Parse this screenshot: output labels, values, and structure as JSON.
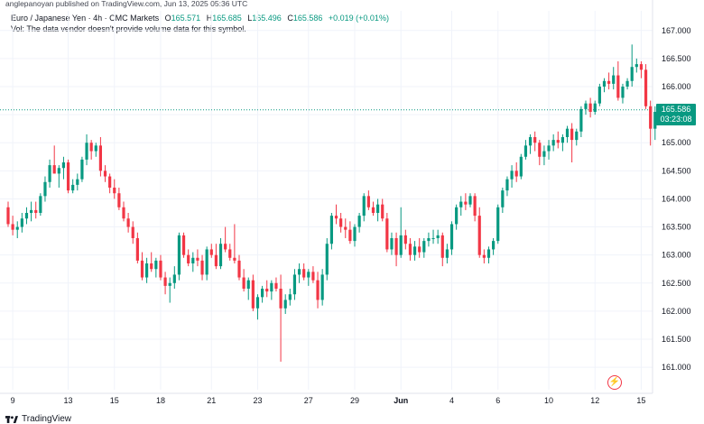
{
  "caption": "anglepanoyan published on TradingView.com, Jun 13, 2025 05:36 UTC",
  "legend": {
    "symbol": "Euro / Japanese Yen · 4h · CMC Markets",
    "open_label": "O",
    "open": "165.571",
    "high_label": "H",
    "high": "165.685",
    "low_label": "L",
    "low": "165.496",
    "close_label": "C",
    "close": "165.586",
    "change": "+0.019 (+0.01%)"
  },
  "volume_note": "Vol: The data vendor doesn't provide volume data for this symbol.",
  "price_tag": {
    "price": "165.586",
    "countdown": "03:23:08"
  },
  "footer": {
    "brand": "TradingView"
  },
  "icons": {
    "logo": "tradingview-logo-icon",
    "bolt": "lightning-bolt-icon"
  },
  "colors": {
    "up": "#089981",
    "down": "#f23645",
    "grid": "#f0f3fa",
    "axis_text": "#131722"
  },
  "chart_data": {
    "type": "candlestick",
    "interval": "4h",
    "ylim": [
      160.6,
      167.35
    ],
    "y_ticks": [
      "167.000",
      "166.500",
      "166.000",
      "165.500",
      "165.000",
      "164.500",
      "164.000",
      "163.500",
      "163.000",
      "162.500",
      "162.000",
      "161.500",
      "161.000"
    ],
    "y_tick_values": [
      167.0,
      166.5,
      166.0,
      165.5,
      165.0,
      164.5,
      164.0,
      163.5,
      163.0,
      162.5,
      162.0,
      161.5,
      161.0
    ],
    "x_ticks": [
      "9",
      "13",
      "15",
      "18",
      "21",
      "23",
      "27",
      "29",
      "Jun",
      "4",
      "6",
      "10",
      "12",
      "15"
    ],
    "x_tick_index": [
      1,
      13,
      23,
      33,
      44,
      54,
      65,
      75,
      85,
      96,
      106,
      117,
      127,
      137
    ],
    "last_price": 165.586,
    "series": [
      {
        "o": 163.85,
        "h": 163.95,
        "l": 163.5,
        "c": 163.55
      },
      {
        "o": 163.55,
        "h": 163.7,
        "l": 163.35,
        "c": 163.45
      },
      {
        "o": 163.45,
        "h": 163.6,
        "l": 163.3,
        "c": 163.5
      },
      {
        "o": 163.5,
        "h": 163.75,
        "l": 163.4,
        "c": 163.65
      },
      {
        "o": 163.65,
        "h": 163.85,
        "l": 163.55,
        "c": 163.75
      },
      {
        "o": 163.75,
        "h": 163.95,
        "l": 163.6,
        "c": 163.8
      },
      {
        "o": 163.8,
        "h": 163.95,
        "l": 163.65,
        "c": 163.75
      },
      {
        "o": 163.75,
        "h": 164.1,
        "l": 163.7,
        "c": 164.05
      },
      {
        "o": 164.05,
        "h": 164.4,
        "l": 163.95,
        "c": 164.3
      },
      {
        "o": 164.3,
        "h": 164.7,
        "l": 164.2,
        "c": 164.6
      },
      {
        "o": 164.6,
        "h": 164.95,
        "l": 164.45,
        "c": 164.45
      },
      {
        "o": 164.45,
        "h": 164.6,
        "l": 164.2,
        "c": 164.55
      },
      {
        "o": 164.55,
        "h": 164.75,
        "l": 164.35,
        "c": 164.65
      },
      {
        "o": 164.65,
        "h": 164.7,
        "l": 164.1,
        "c": 164.15
      },
      {
        "o": 164.15,
        "h": 164.35,
        "l": 164.1,
        "c": 164.25
      },
      {
        "o": 164.25,
        "h": 164.45,
        "l": 164.15,
        "c": 164.35
      },
      {
        "o": 164.35,
        "h": 164.75,
        "l": 164.3,
        "c": 164.7
      },
      {
        "o": 164.7,
        "h": 165.15,
        "l": 164.6,
        "c": 165.0
      },
      {
        "o": 165.0,
        "h": 165.05,
        "l": 164.7,
        "c": 164.85
      },
      {
        "o": 164.85,
        "h": 165.0,
        "l": 164.75,
        "c": 164.95
      },
      {
        "o": 164.95,
        "h": 165.1,
        "l": 164.4,
        "c": 164.5
      },
      {
        "o": 164.5,
        "h": 164.6,
        "l": 164.3,
        "c": 164.4
      },
      {
        "o": 164.4,
        "h": 164.45,
        "l": 164.1,
        "c": 164.2
      },
      {
        "o": 164.2,
        "h": 164.35,
        "l": 164.0,
        "c": 164.1
      },
      {
        "o": 164.1,
        "h": 164.2,
        "l": 163.8,
        "c": 163.85
      },
      {
        "o": 163.85,
        "h": 163.95,
        "l": 163.6,
        "c": 163.65
      },
      {
        "o": 163.65,
        "h": 163.75,
        "l": 163.4,
        "c": 163.5
      },
      {
        "o": 163.5,
        "h": 163.6,
        "l": 163.2,
        "c": 163.3
      },
      {
        "o": 163.3,
        "h": 163.4,
        "l": 162.85,
        "c": 162.9
      },
      {
        "o": 162.9,
        "h": 163.05,
        "l": 162.55,
        "c": 162.6
      },
      {
        "o": 162.6,
        "h": 162.95,
        "l": 162.5,
        "c": 162.85
      },
      {
        "o": 162.85,
        "h": 163.05,
        "l": 162.7,
        "c": 162.75
      },
      {
        "o": 162.75,
        "h": 162.95,
        "l": 162.6,
        "c": 162.9
      },
      {
        "o": 162.9,
        "h": 163.0,
        "l": 162.55,
        "c": 162.6
      },
      {
        "o": 162.6,
        "h": 162.7,
        "l": 162.3,
        "c": 162.45
      },
      {
        "o": 162.45,
        "h": 162.6,
        "l": 162.15,
        "c": 162.5
      },
      {
        "o": 162.5,
        "h": 162.8,
        "l": 162.4,
        "c": 162.65
      },
      {
        "o": 162.65,
        "h": 163.4,
        "l": 162.55,
        "c": 163.35
      },
      {
        "o": 163.35,
        "h": 163.4,
        "l": 162.95,
        "c": 163.0
      },
      {
        "o": 163.0,
        "h": 163.1,
        "l": 162.8,
        "c": 162.85
      },
      {
        "o": 162.85,
        "h": 163.05,
        "l": 162.7,
        "c": 162.95
      },
      {
        "o": 162.95,
        "h": 163.1,
        "l": 162.8,
        "c": 162.9
      },
      {
        "o": 162.9,
        "h": 163.0,
        "l": 162.55,
        "c": 162.65
      },
      {
        "o": 162.65,
        "h": 163.15,
        "l": 162.55,
        "c": 163.1
      },
      {
        "o": 163.1,
        "h": 163.2,
        "l": 162.95,
        "c": 163.0
      },
      {
        "o": 163.0,
        "h": 163.2,
        "l": 162.75,
        "c": 162.8
      },
      {
        "o": 162.8,
        "h": 163.3,
        "l": 162.75,
        "c": 163.2
      },
      {
        "o": 163.2,
        "h": 163.5,
        "l": 163.05,
        "c": 163.1
      },
      {
        "o": 163.1,
        "h": 163.2,
        "l": 162.9,
        "c": 162.95
      },
      {
        "o": 162.95,
        "h": 163.55,
        "l": 162.85,
        "c": 162.9
      },
      {
        "o": 162.9,
        "h": 163.0,
        "l": 162.55,
        "c": 162.6
      },
      {
        "o": 162.6,
        "h": 162.75,
        "l": 162.35,
        "c": 162.4
      },
      {
        "o": 162.4,
        "h": 162.6,
        "l": 162.2,
        "c": 162.55
      },
      {
        "o": 162.55,
        "h": 162.65,
        "l": 162.0,
        "c": 162.05
      },
      {
        "o": 162.05,
        "h": 162.3,
        "l": 161.85,
        "c": 162.25
      },
      {
        "o": 162.25,
        "h": 162.45,
        "l": 162.15,
        "c": 162.4
      },
      {
        "o": 162.4,
        "h": 162.55,
        "l": 162.25,
        "c": 162.35
      },
      {
        "o": 162.35,
        "h": 162.55,
        "l": 162.2,
        "c": 162.5
      },
      {
        "o": 162.5,
        "h": 162.6,
        "l": 162.35,
        "c": 162.4
      },
      {
        "o": 162.4,
        "h": 162.65,
        "l": 161.1,
        "c": 162.05
      },
      {
        "o": 162.05,
        "h": 162.3,
        "l": 161.95,
        "c": 162.2
      },
      {
        "o": 162.2,
        "h": 162.4,
        "l": 162.1,
        "c": 162.3
      },
      {
        "o": 162.3,
        "h": 162.75,
        "l": 162.2,
        "c": 162.65
      },
      {
        "o": 162.65,
        "h": 162.85,
        "l": 162.5,
        "c": 162.75
      },
      {
        "o": 162.75,
        "h": 162.85,
        "l": 162.55,
        "c": 162.6
      },
      {
        "o": 162.6,
        "h": 162.75,
        "l": 162.45,
        "c": 162.7
      },
      {
        "o": 162.7,
        "h": 162.8,
        "l": 162.5,
        "c": 162.55
      },
      {
        "o": 162.55,
        "h": 162.7,
        "l": 162.05,
        "c": 162.2
      },
      {
        "o": 162.2,
        "h": 162.75,
        "l": 162.1,
        "c": 162.65
      },
      {
        "o": 162.65,
        "h": 163.3,
        "l": 162.55,
        "c": 163.2
      },
      {
        "o": 163.2,
        "h": 163.75,
        "l": 163.1,
        "c": 163.7
      },
      {
        "o": 163.7,
        "h": 163.9,
        "l": 163.55,
        "c": 163.65
      },
      {
        "o": 163.65,
        "h": 163.75,
        "l": 163.4,
        "c": 163.5
      },
      {
        "o": 163.5,
        "h": 163.65,
        "l": 163.3,
        "c": 163.45
      },
      {
        "o": 163.45,
        "h": 163.6,
        "l": 163.2,
        "c": 163.25
      },
      {
        "o": 163.25,
        "h": 163.55,
        "l": 163.15,
        "c": 163.5
      },
      {
        "o": 163.5,
        "h": 163.75,
        "l": 163.4,
        "c": 163.7
      },
      {
        "o": 163.7,
        "h": 164.1,
        "l": 163.6,
        "c": 164.05
      },
      {
        "o": 164.05,
        "h": 164.15,
        "l": 163.8,
        "c": 163.85
      },
      {
        "o": 163.85,
        "h": 163.95,
        "l": 163.7,
        "c": 163.75
      },
      {
        "o": 163.75,
        "h": 164.0,
        "l": 163.6,
        "c": 163.9
      },
      {
        "o": 163.9,
        "h": 164.0,
        "l": 163.6,
        "c": 163.65
      },
      {
        "o": 163.65,
        "h": 163.75,
        "l": 163.05,
        "c": 163.1
      },
      {
        "o": 163.1,
        "h": 163.4,
        "l": 163.0,
        "c": 163.3
      },
      {
        "o": 163.3,
        "h": 163.4,
        "l": 162.8,
        "c": 163.0
      },
      {
        "o": 163.0,
        "h": 163.85,
        "l": 162.95,
        "c": 163.35
      },
      {
        "o": 163.35,
        "h": 163.45,
        "l": 163.1,
        "c": 163.2
      },
      {
        "o": 163.2,
        "h": 163.3,
        "l": 162.9,
        "c": 163.0
      },
      {
        "o": 163.0,
        "h": 163.25,
        "l": 162.9,
        "c": 163.15
      },
      {
        "o": 163.15,
        "h": 163.3,
        "l": 162.95,
        "c": 163.05
      },
      {
        "o": 163.05,
        "h": 163.3,
        "l": 162.95,
        "c": 163.25
      },
      {
        "o": 163.25,
        "h": 163.4,
        "l": 163.15,
        "c": 163.3
      },
      {
        "o": 163.3,
        "h": 163.45,
        "l": 163.2,
        "c": 163.3
      },
      {
        "o": 163.3,
        "h": 163.45,
        "l": 163.2,
        "c": 163.35
      },
      {
        "o": 163.35,
        "h": 163.4,
        "l": 162.8,
        "c": 162.95
      },
      {
        "o": 162.95,
        "h": 163.2,
        "l": 162.85,
        "c": 163.1
      },
      {
        "o": 163.1,
        "h": 163.6,
        "l": 163.0,
        "c": 163.55
      },
      {
        "o": 163.55,
        "h": 163.9,
        "l": 163.45,
        "c": 163.85
      },
      {
        "o": 163.85,
        "h": 164.05,
        "l": 163.7,
        "c": 163.95
      },
      {
        "o": 163.95,
        "h": 164.1,
        "l": 163.8,
        "c": 163.9
      },
      {
        "o": 163.9,
        "h": 164.1,
        "l": 163.85,
        "c": 164.05
      },
      {
        "o": 164.05,
        "h": 164.1,
        "l": 163.6,
        "c": 163.7
      },
      {
        "o": 163.7,
        "h": 163.85,
        "l": 162.95,
        "c": 163.0
      },
      {
        "o": 163.0,
        "h": 163.1,
        "l": 162.85,
        "c": 162.95
      },
      {
        "o": 162.95,
        "h": 163.15,
        "l": 162.85,
        "c": 163.1
      },
      {
        "o": 163.1,
        "h": 163.3,
        "l": 163.0,
        "c": 163.25
      },
      {
        "o": 163.25,
        "h": 163.9,
        "l": 163.2,
        "c": 163.85
      },
      {
        "o": 163.85,
        "h": 164.2,
        "l": 163.75,
        "c": 164.15
      },
      {
        "o": 164.15,
        "h": 164.4,
        "l": 164.05,
        "c": 164.35
      },
      {
        "o": 164.35,
        "h": 164.6,
        "l": 164.2,
        "c": 164.5
      },
      {
        "o": 164.5,
        "h": 164.65,
        "l": 164.3,
        "c": 164.4
      },
      {
        "o": 164.4,
        "h": 164.8,
        "l": 164.35,
        "c": 164.75
      },
      {
        "o": 164.75,
        "h": 165.05,
        "l": 164.7,
        "c": 164.95
      },
      {
        "o": 164.95,
        "h": 165.15,
        "l": 164.8,
        "c": 165.1
      },
      {
        "o": 165.1,
        "h": 165.2,
        "l": 164.85,
        "c": 165.0
      },
      {
        "o": 165.0,
        "h": 165.05,
        "l": 164.6,
        "c": 164.75
      },
      {
        "o": 164.75,
        "h": 164.95,
        "l": 164.6,
        "c": 164.85
      },
      {
        "o": 164.85,
        "h": 165.05,
        "l": 164.7,
        "c": 164.95
      },
      {
        "o": 164.95,
        "h": 165.15,
        "l": 164.85,
        "c": 165.05
      },
      {
        "o": 165.05,
        "h": 165.2,
        "l": 164.9,
        "c": 165.0
      },
      {
        "o": 165.0,
        "h": 165.15,
        "l": 164.85,
        "c": 165.1
      },
      {
        "o": 165.1,
        "h": 165.3,
        "l": 165.0,
        "c": 165.25
      },
      {
        "o": 165.25,
        "h": 165.35,
        "l": 164.65,
        "c": 165.05
      },
      {
        "o": 165.05,
        "h": 165.25,
        "l": 164.95,
        "c": 165.2
      },
      {
        "o": 165.2,
        "h": 165.65,
        "l": 165.1,
        "c": 165.6
      },
      {
        "o": 165.6,
        "h": 165.75,
        "l": 165.5,
        "c": 165.7
      },
      {
        "o": 165.7,
        "h": 165.8,
        "l": 165.45,
        "c": 165.55
      },
      {
        "o": 165.55,
        "h": 165.75,
        "l": 165.5,
        "c": 165.7
      },
      {
        "o": 165.7,
        "h": 166.05,
        "l": 165.65,
        "c": 166.0
      },
      {
        "o": 166.0,
        "h": 166.15,
        "l": 165.9,
        "c": 166.1
      },
      {
        "o": 166.1,
        "h": 166.25,
        "l": 165.95,
        "c": 166.05
      },
      {
        "o": 166.05,
        "h": 166.35,
        "l": 165.95,
        "c": 166.2
      },
      {
        "o": 166.2,
        "h": 166.45,
        "l": 165.75,
        "c": 165.8
      },
      {
        "o": 165.8,
        "h": 166.05,
        "l": 165.7,
        "c": 166.0
      },
      {
        "o": 166.0,
        "h": 166.15,
        "l": 165.95,
        "c": 166.1
      },
      {
        "o": 166.1,
        "h": 166.75,
        "l": 166.0,
        "c": 166.35
      },
      {
        "o": 166.35,
        "h": 166.5,
        "l": 166.25,
        "c": 166.4
      },
      {
        "o": 166.4,
        "h": 166.45,
        "l": 166.15,
        "c": 166.3
      },
      {
        "o": 166.3,
        "h": 166.4,
        "l": 165.6,
        "c": 165.65
      },
      {
        "o": 165.65,
        "h": 165.75,
        "l": 164.95,
        "c": 165.25
      },
      {
        "o": 165.25,
        "h": 165.65,
        "l": 165.05,
        "c": 165.55
      },
      {
        "o": 165.571,
        "h": 165.685,
        "l": 165.496,
        "c": 165.586
      }
    ]
  }
}
